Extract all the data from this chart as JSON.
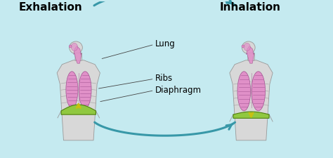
{
  "bg_color": "#c5eaf0",
  "title_left": "Exhalation",
  "title_right": "Inhalation",
  "label_lung": "Lung",
  "label_ribs": "Ribs",
  "label_diaphragm": "Diaphragm",
  "title_fontsize": 11,
  "label_fontsize": 8.5,
  "lung_color": "#e090c8",
  "lung_edge": "#a05090",
  "throat_color": "#e090c8",
  "throat_edge": "#a05090",
  "body_color": "#d8d8d8",
  "body_edge": "#999999",
  "diaphragm_color": "#90c840",
  "diaphragm_edge": "#508010",
  "arrow_color": "#3898a8",
  "arrow_yellow": "#c8c010",
  "fig_width": 4.74,
  "fig_height": 2.26,
  "dpi": 100
}
